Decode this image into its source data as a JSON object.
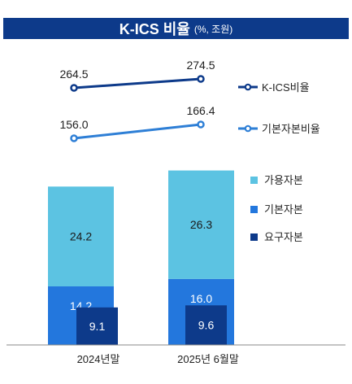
{
  "title": {
    "main": "K-ICS 비율",
    "sub": "(%, 조원)"
  },
  "chart_data": [
    {
      "type": "line",
      "categories": [
        "2024년말",
        "2025년 6월말"
      ],
      "series": [
        {
          "name": "K-ICS비율",
          "values": [
            264.5,
            274.5
          ],
          "color": "#0d3a8a"
        },
        {
          "name": "기본자본비율",
          "values": [
            156.0,
            166.4
          ],
          "color": "#2e7fd6"
        }
      ],
      "legend_position": "right",
      "grid": false
    },
    {
      "type": "bar",
      "categories": [
        "2024년말",
        "2025년 6월말"
      ],
      "stack": [
        "기본자본",
        "가용자본"
      ],
      "series": [
        {
          "name": "가용자본",
          "values": [
            24.2,
            26.3
          ],
          "color": "#5cc3e2"
        },
        {
          "name": "기본자본",
          "values": [
            14.2,
            16.0
          ],
          "color": "#2377dd"
        },
        {
          "name": "요구자본",
          "values": [
            9.1,
            9.6
          ],
          "color": "#0d3a8a"
        }
      ],
      "legend_position": "right",
      "grid": false
    }
  ]
}
